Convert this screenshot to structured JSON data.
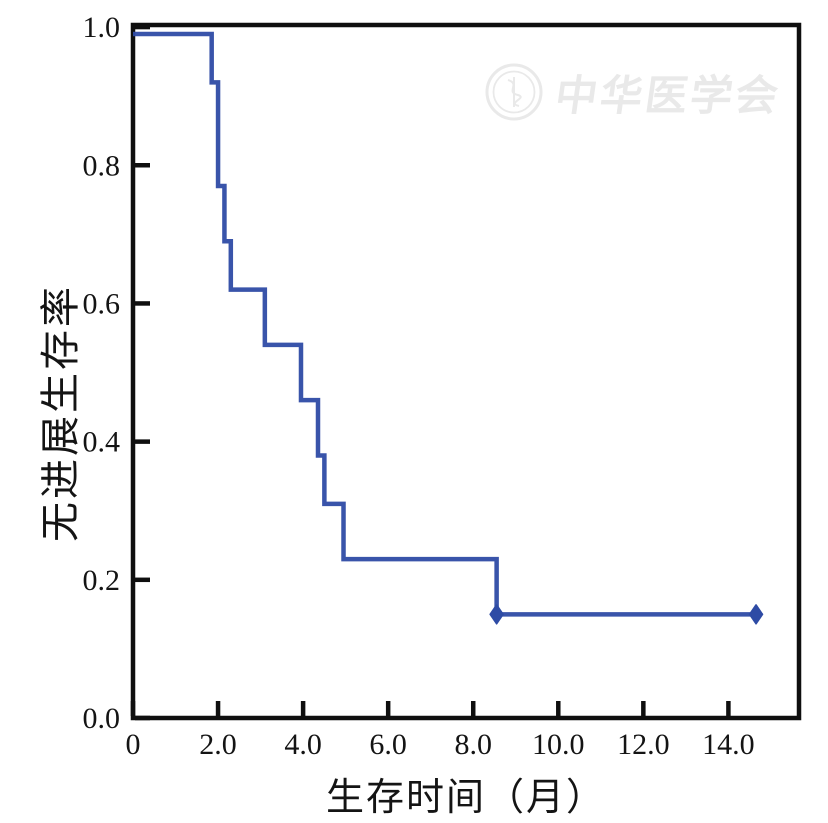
{
  "figure": {
    "background": "#ffffff",
    "axis_color": "#0f0f0f",
    "watermark_text": "中华医学会",
    "watermark_color": "#e9e9e9"
  },
  "chart_data": {
    "type": "line",
    "subtype": "kaplan_meier_step",
    "title": "",
    "xlabel": "生存时间（月）",
    "ylabel": "无进展生存率",
    "xlim": [
      0,
      15.66
    ],
    "ylim": [
      0,
      1.003
    ],
    "x_ticks": [
      0,
      2,
      4,
      6,
      8,
      10,
      12,
      14
    ],
    "x_tick_labels": [
      "0",
      "2.0",
      "4.0",
      "6.0",
      "8.0",
      "10.0",
      "12.0",
      "14.0"
    ],
    "y_ticks": [
      0,
      0.2,
      0.4,
      0.6,
      0.8,
      1.0
    ],
    "y_tick_labels": [
      "0.0",
      "0.2",
      "0.4",
      "0.6",
      "0.8",
      "1.0"
    ],
    "grid": false,
    "legend": null,
    "series": [
      {
        "color": "#2e4ba5",
        "steps": [
          {
            "t": 0.0,
            "s": 0.99
          },
          {
            "t": 1.85,
            "s": 0.92
          },
          {
            "t": 2.0,
            "s": 0.77
          },
          {
            "t": 2.15,
            "s": 0.69
          },
          {
            "t": 2.3,
            "s": 0.62
          },
          {
            "t": 3.1,
            "s": 0.54
          },
          {
            "t": 3.95,
            "s": 0.46
          },
          {
            "t": 4.35,
            "s": 0.38
          },
          {
            "t": 4.5,
            "s": 0.31
          },
          {
            "t": 4.95,
            "s": 0.23
          },
          {
            "t": 8.55,
            "s": 0.15
          }
        ],
        "end_t": 14.65,
        "censor_marks": [
          {
            "t": 8.55,
            "s": 0.15
          },
          {
            "t": 14.65,
            "s": 0.15
          }
        ]
      }
    ]
  }
}
